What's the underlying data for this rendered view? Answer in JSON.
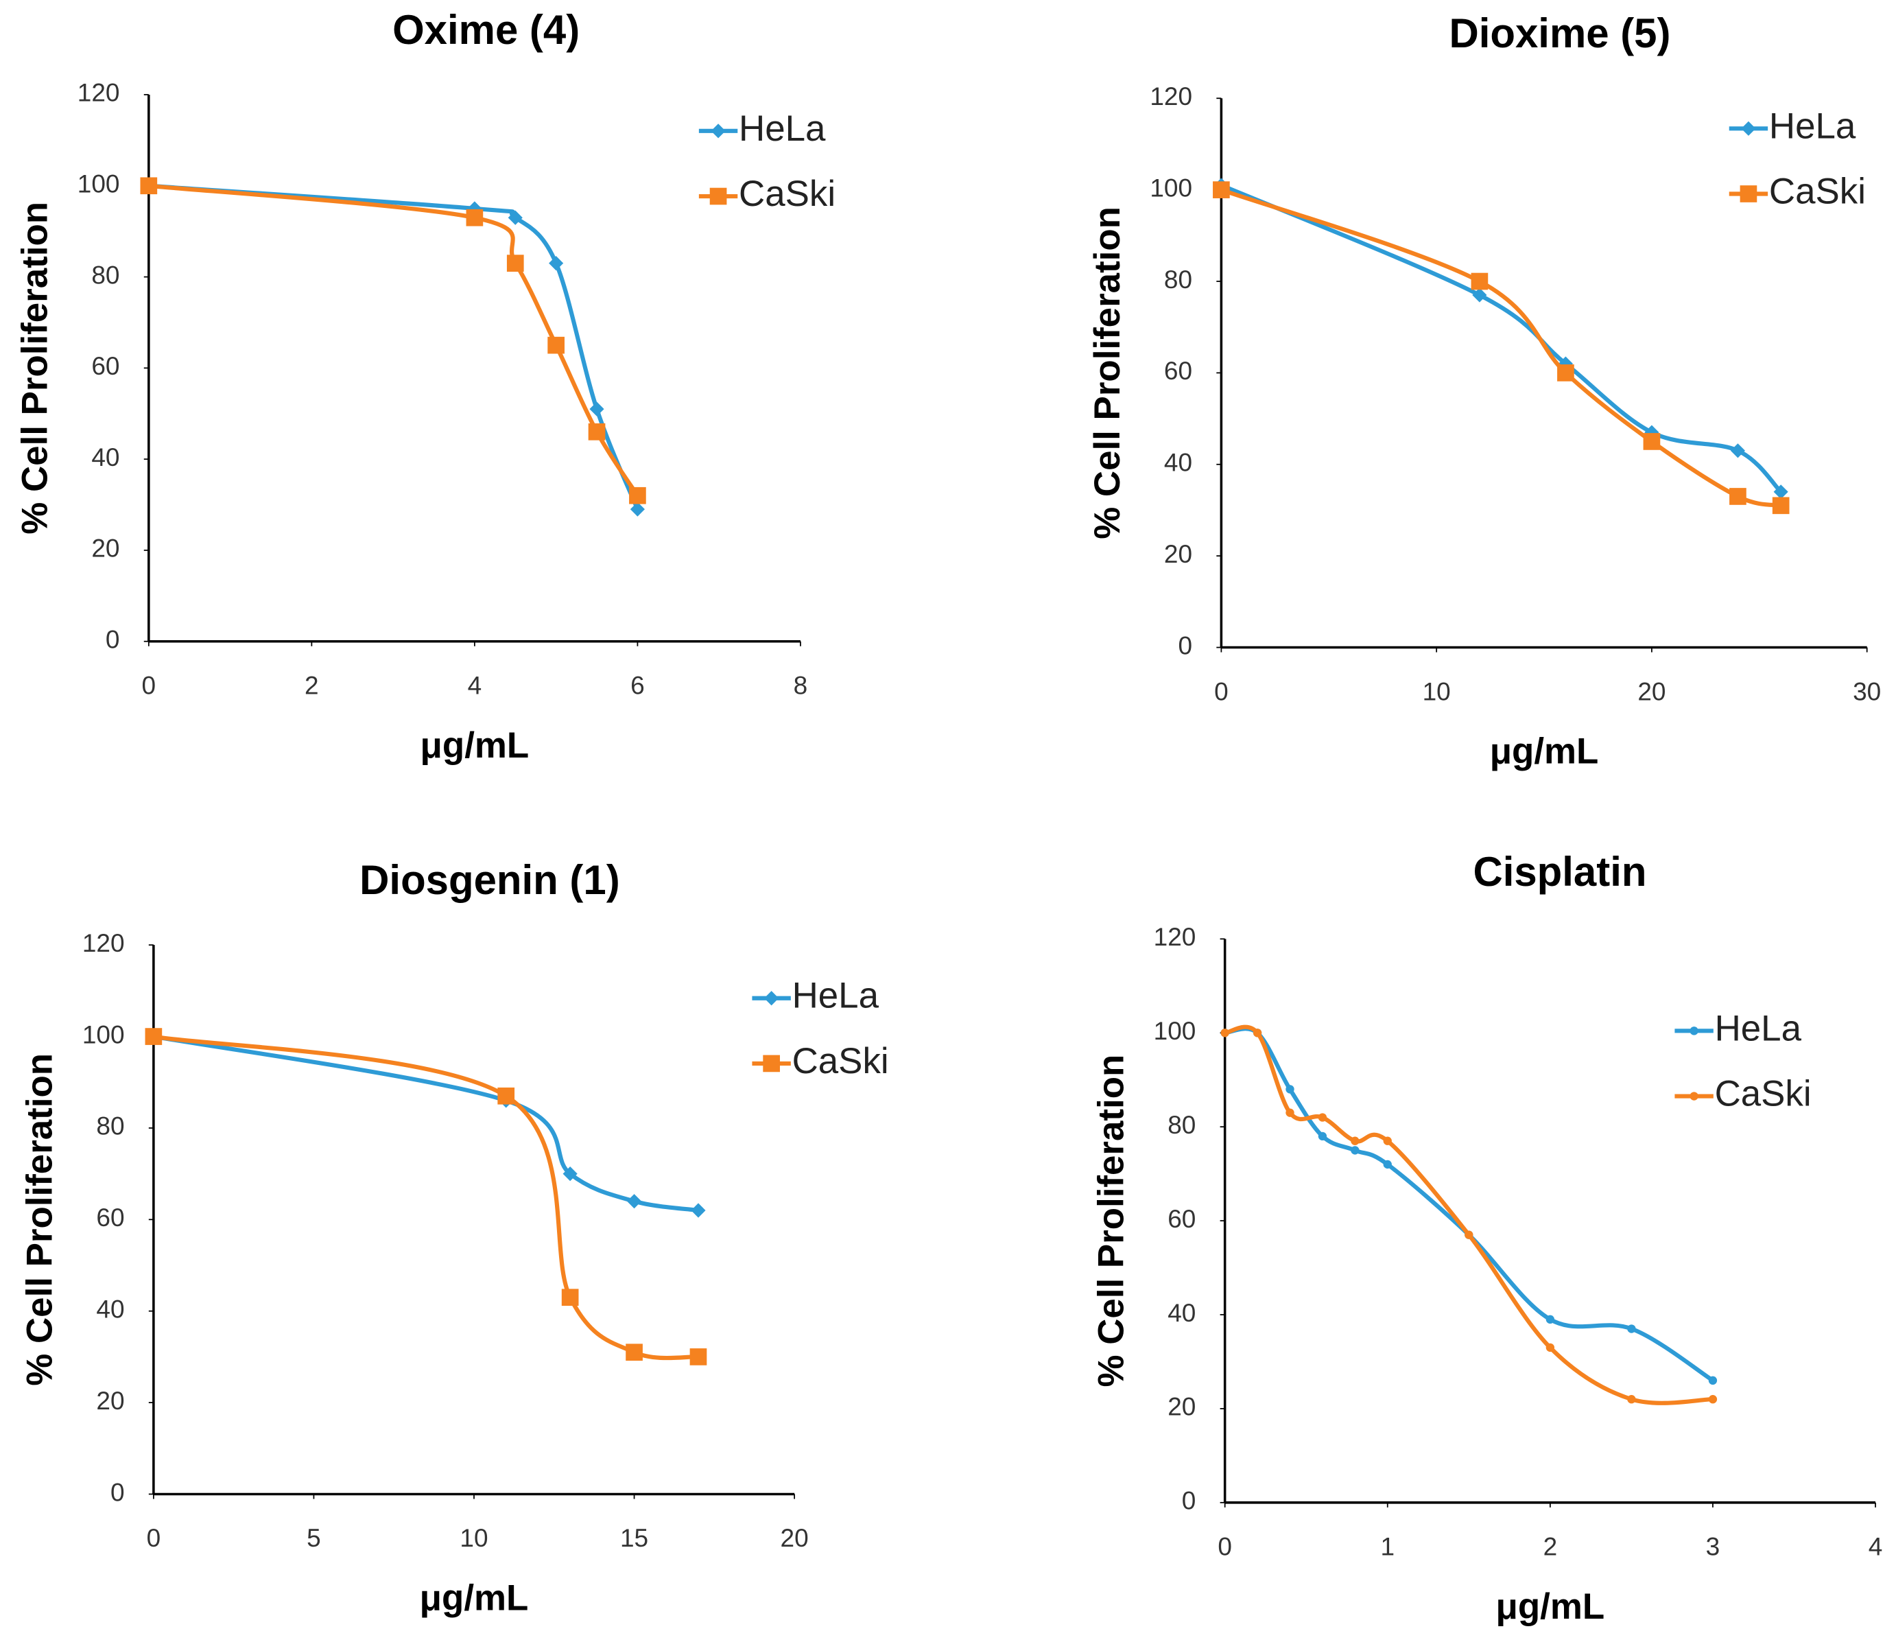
{
  "chart_data": [
    {
      "type": "line",
      "title": "Oxime (4)",
      "xlabel": "μg/mL",
      "ylabel": "% Cell Proliferation",
      "x": [
        0,
        4,
        4.5,
        5,
        5.5,
        6
      ],
      "series": [
        {
          "name": "HeLa",
          "color": "#2e9bd6",
          "marker": "diamond",
          "values": [
            100,
            95,
            93,
            83,
            51,
            29
          ]
        },
        {
          "name": "CaSki",
          "color": "#f5821f",
          "marker": "square",
          "values": [
            100,
            93,
            83,
            65,
            46,
            32
          ]
        }
      ],
      "xlim": [
        0,
        8
      ],
      "xticks": [
        0,
        2,
        4,
        6,
        8
      ],
      "ylim": [
        0,
        120
      ],
      "yticks": [
        0,
        20,
        40,
        60,
        80,
        100,
        120
      ],
      "smooth": true,
      "legend": "upper right"
    },
    {
      "type": "line",
      "title": "Dioxime (5)",
      "xlabel": "μg/mL",
      "ylabel": "% Cell Proliferation",
      "x": [
        0,
        12,
        16,
        20,
        24,
        26
      ],
      "series": [
        {
          "name": "HeLa",
          "color": "#2e9bd6",
          "marker": "diamond",
          "values": [
            101,
            77,
            62,
            47,
            43,
            34
          ]
        },
        {
          "name": "CaSki",
          "color": "#f5821f",
          "marker": "square",
          "values": [
            100,
            80,
            60,
            45,
            33,
            31
          ]
        }
      ],
      "xlim": [
        0,
        30
      ],
      "xticks": [
        0,
        10,
        20,
        30
      ],
      "ylim": [
        0,
        120
      ],
      "yticks": [
        0,
        20,
        40,
        60,
        80,
        100,
        120
      ],
      "smooth": true,
      "legend": "upper right"
    },
    {
      "type": "line",
      "title": "Diosgenin (1)",
      "xlabel": "μg/mL",
      "ylabel": "% Cell Proliferation",
      "x": [
        0,
        11,
        13,
        15,
        17
      ],
      "series": [
        {
          "name": "HeLa",
          "color": "#2e9bd6",
          "marker": "diamond",
          "values": [
            100,
            86,
            70,
            64,
            62
          ]
        },
        {
          "name": "CaSki",
          "color": "#f5821f",
          "marker": "square",
          "values": [
            100,
            87,
            43,
            31,
            30
          ]
        }
      ],
      "xlim": [
        0,
        20
      ],
      "xticks": [
        0,
        5,
        10,
        15,
        20
      ],
      "ylim": [
        0,
        120
      ],
      "yticks": [
        0,
        20,
        40,
        60,
        80,
        100,
        120
      ],
      "smooth": true,
      "legend": "upper right"
    },
    {
      "type": "line",
      "title": "Cisplatin",
      "xlabel": "μg/mL",
      "ylabel": "% Cell Proliferation",
      "x": [
        0,
        0.2,
        0.4,
        0.6,
        0.8,
        1,
        1.5,
        2,
        2.5,
        3
      ],
      "series": [
        {
          "name": "HeLa",
          "color": "#2e9bd6",
          "marker": "circle",
          "values": [
            100,
            100,
            88,
            78,
            75,
            72,
            57,
            39,
            37,
            26
          ]
        },
        {
          "name": "CaSki",
          "color": "#f5821f",
          "marker": "circle",
          "values": [
            100,
            100,
            83,
            82,
            77,
            77,
            57,
            33,
            22,
            22
          ]
        }
      ],
      "xlim": [
        0,
        4
      ],
      "xticks": [
        0,
        1,
        2,
        3,
        4
      ],
      "ylim": [
        0,
        120
      ],
      "yticks": [
        0,
        20,
        40,
        60,
        80,
        100,
        120
      ],
      "smooth": true,
      "legend": "upper right"
    }
  ]
}
